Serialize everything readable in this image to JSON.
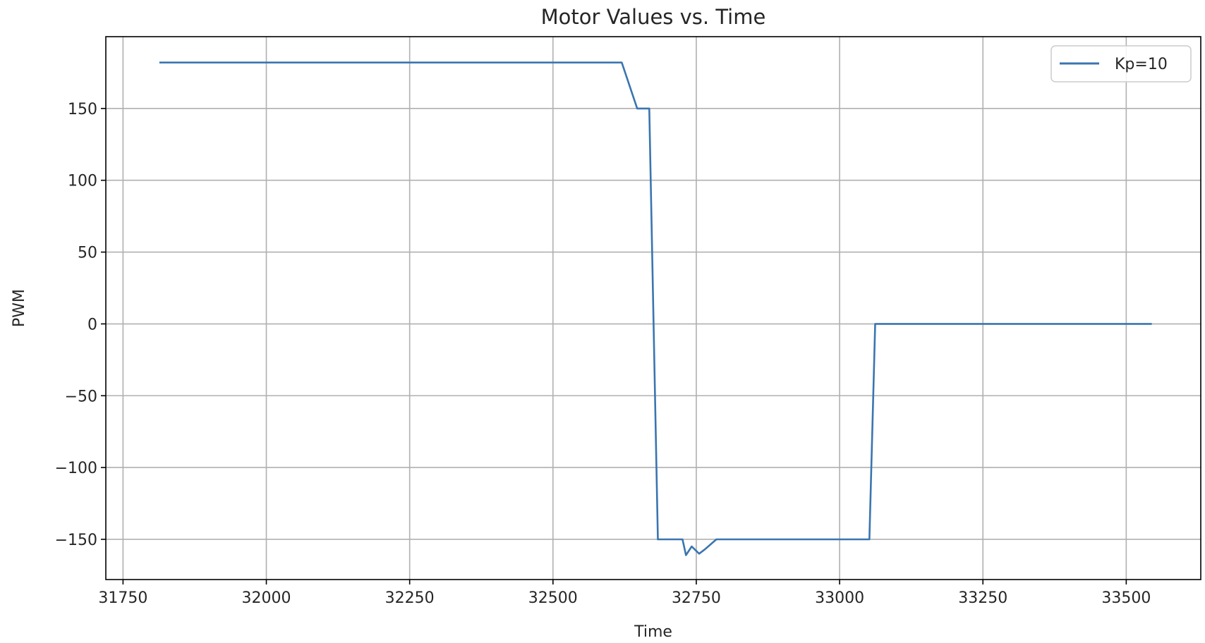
{
  "chart_data": {
    "type": "line",
    "title": "Motor Values vs. Time",
    "xlabel": "Time",
    "ylabel": "PWM",
    "xlim": [
      31720,
      33630
    ],
    "ylim": [
      -178,
      200
    ],
    "xticks": [
      31750,
      32000,
      32250,
      32500,
      32750,
      33000,
      33250,
      33500
    ],
    "xtick_labels": [
      "31750",
      "32000",
      "32250",
      "32500",
      "32750",
      "33000",
      "33250",
      "33500"
    ],
    "yticks": [
      -150,
      -100,
      -50,
      0,
      50,
      100,
      150
    ],
    "ytick_labels": [
      "−150",
      "−100",
      "−50",
      "0",
      "50",
      "100",
      "150"
    ],
    "grid": true,
    "legend_position": "top-right",
    "series": [
      {
        "name": "Kp=10",
        "color": "#3a75b0",
        "x": [
          31815,
          32620,
          32647,
          32668,
          32683,
          32726,
          32732,
          32742,
          32755,
          32765,
          32785,
          33052,
          33062,
          33543
        ],
        "y": [
          182,
          182,
          150,
          150,
          -150,
          -150,
          -161,
          -155,
          -160,
          -157,
          -150,
          -150,
          0,
          0
        ]
      }
    ]
  }
}
